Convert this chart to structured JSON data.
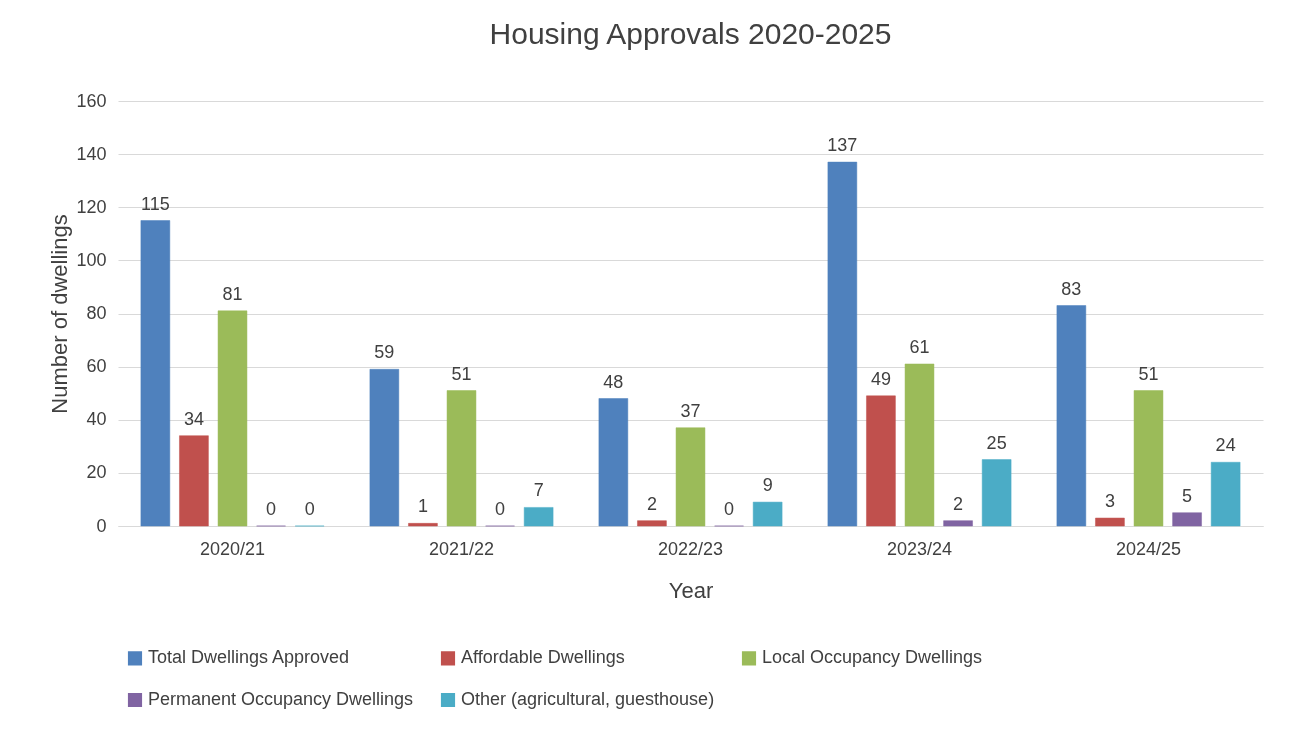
{
  "chart_data": {
    "type": "bar",
    "title": "Housing Approvals 2020-2025",
    "xlabel": "Year",
    "ylabel": "Number of dwellings",
    "categories": [
      "2020/21",
      "2021/22",
      "2022/23",
      "2023/24",
      "2024/25"
    ],
    "series": [
      {
        "name": "Total Dwellings Approved",
        "color": "#4f81bd",
        "values": [
          115,
          59,
          48,
          137,
          83
        ]
      },
      {
        "name": "Affordable Dwellings",
        "color": "#c0504d",
        "values": [
          34,
          1,
          2,
          49,
          3
        ]
      },
      {
        "name": "Local Occupancy Dwellings",
        "color": "#9bbb59",
        "values": [
          81,
          51,
          37,
          61,
          51
        ]
      },
      {
        "name": "Permanent Occupancy Dwellings",
        "color": "#8064a2",
        "values": [
          0,
          0,
          0,
          2,
          5
        ]
      },
      {
        "name": "Other (agricultural, guesthouse)",
        "color": "#4bacc6",
        "values": [
          0,
          7,
          9,
          25,
          24
        ]
      }
    ],
    "ylim": [
      0,
      160
    ],
    "yticks": [
      0,
      20,
      40,
      60,
      80,
      100,
      120,
      140,
      160
    ],
    "grid": "y",
    "legend": "bottom",
    "data_labels": true
  }
}
